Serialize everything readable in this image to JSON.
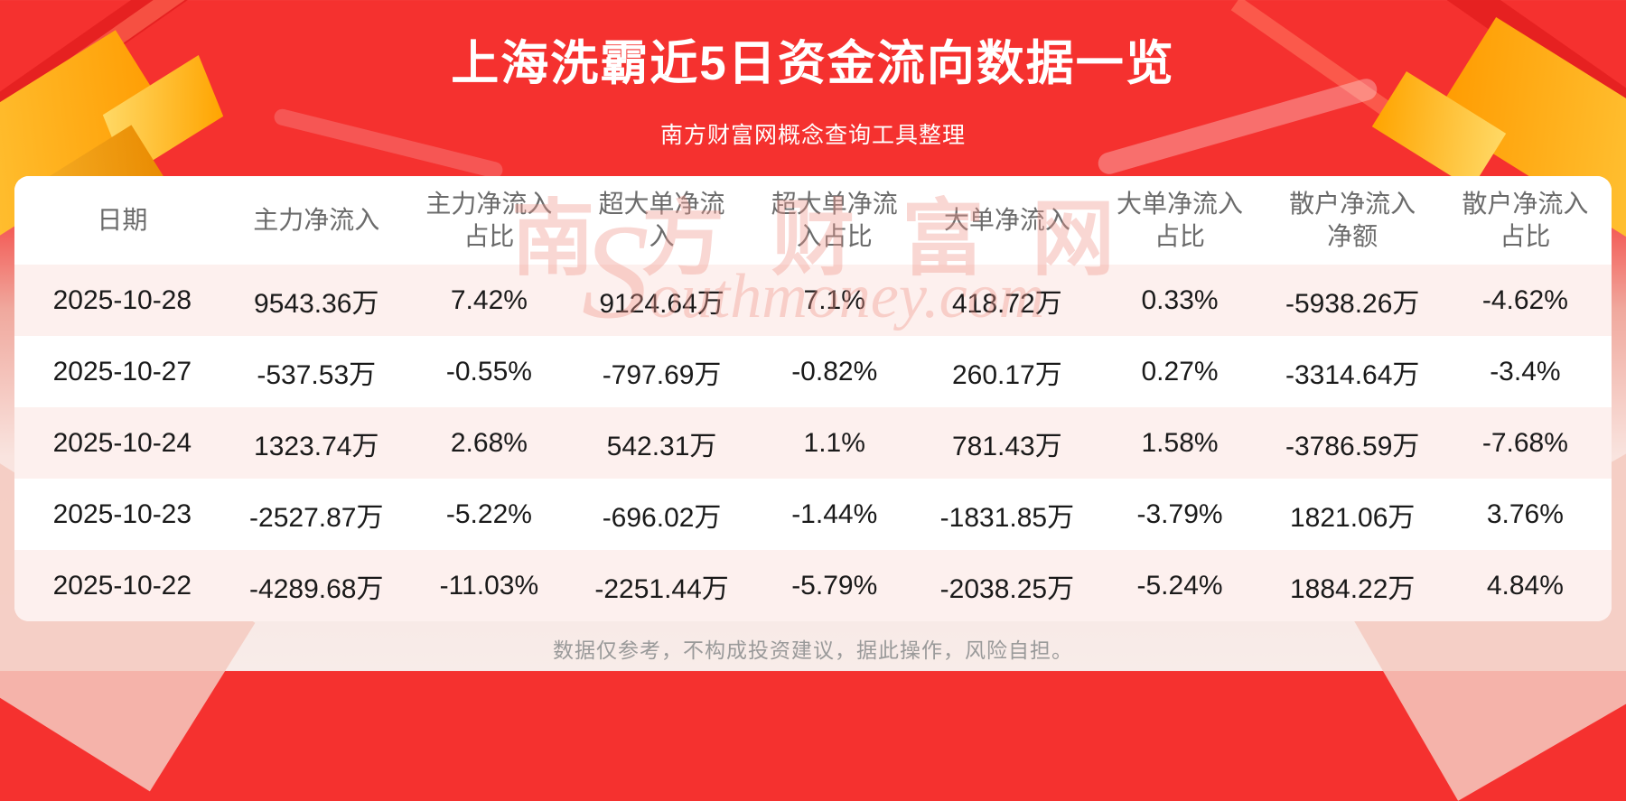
{
  "header": {
    "title": "上海洗霸近5日资金流向数据一览",
    "subtitle": "南方财富网概念查询工具整理"
  },
  "table": {
    "columns": [
      "日期",
      "主力净流入",
      "主力净流入\n占比",
      "超大单净流\n入",
      "超大单净流\n入占比",
      "大单净流入",
      "大单净流入\n占比",
      "散户净流入\n净额",
      "散户净流入\n占比"
    ],
    "rows": [
      [
        "2025-10-28",
        "9543.36万",
        "7.42%",
        "9124.64万",
        "7.1%",
        "418.72万",
        "0.33%",
        "-5938.26万",
        "-4.62%"
      ],
      [
        "2025-10-27",
        "-537.53万",
        "-0.55%",
        "-797.69万",
        "-0.82%",
        "260.17万",
        "0.27%",
        "-3314.64万",
        "-3.4%"
      ],
      [
        "2025-10-24",
        "1323.74万",
        "2.68%",
        "542.31万",
        "1.1%",
        "781.43万",
        "1.58%",
        "-3786.59万",
        "-7.68%"
      ],
      [
        "2025-10-23",
        "-2527.87万",
        "-5.22%",
        "-696.02万",
        "-1.44%",
        "-1831.85万",
        "-3.79%",
        "1821.06万",
        "3.76%"
      ],
      [
        "2025-10-22",
        "-4289.68万",
        "-11.03%",
        "-2251.44万",
        "-5.79%",
        "-2038.25万",
        "-5.24%",
        "1884.22万",
        "4.84%"
      ]
    ]
  },
  "chart_data": {
    "type": "table",
    "title": "上海洗霸近5日资金流向数据一览",
    "columns": [
      "日期",
      "主力净流入",
      "主力净流入占比",
      "超大单净流入",
      "超大单净流入占比",
      "大单净流入",
      "大单净流入占比",
      "散户净流入净额",
      "散户净流入占比"
    ],
    "rows": [
      [
        "2025-10-28",
        "9543.36万",
        "7.42%",
        "9124.64万",
        "7.1%",
        "418.72万",
        "0.33%",
        "-5938.26万",
        "-4.62%"
      ],
      [
        "2025-10-27",
        "-537.53万",
        "-0.55%",
        "-797.69万",
        "-0.82%",
        "260.17万",
        "0.27%",
        "-3314.64万",
        "-3.4%"
      ],
      [
        "2025-10-24",
        "1323.74万",
        "2.68%",
        "542.31万",
        "1.1%",
        "781.43万",
        "1.58%",
        "-3786.59万",
        "-7.68%"
      ],
      [
        "2025-10-23",
        "-2527.87万",
        "-5.22%",
        "-696.02万",
        "-1.44%",
        "-1831.85万",
        "-3.79%",
        "1821.06万",
        "3.76%"
      ],
      [
        "2025-10-22",
        "-4289.68万",
        "-11.03%",
        "-2251.44万",
        "-5.79%",
        "-2038.25万",
        "-5.24%",
        "1884.22万",
        "4.84%"
      ]
    ]
  },
  "watermark": {
    "line1": "南方财富网",
    "line2": "Southmoney.com"
  },
  "footer": {
    "disclaimer": "数据仅参考，不构成投资建议，据此操作，风险自担。"
  },
  "colors": {
    "banner_red": "#f5312f",
    "gold_accent": "#ff9b00",
    "row_stripe": "#fdf0ee",
    "watermark_pink": "rgba(240,150,140,0.38)"
  }
}
